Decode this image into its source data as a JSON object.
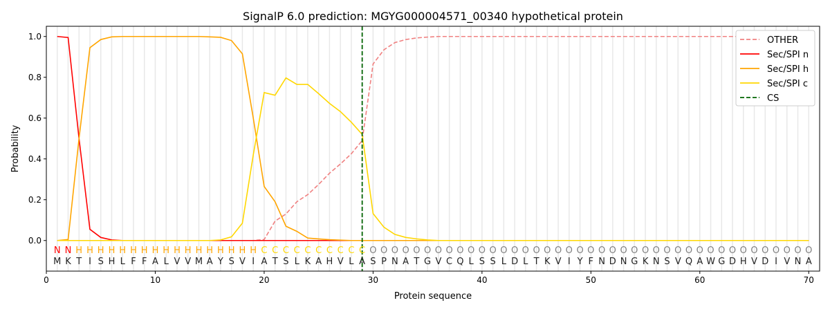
{
  "chart_data": {
    "type": "line",
    "title": "SignalP 6.0 prediction: MGYG000004571_00340 hypothetical protein",
    "xlabel": "Protein sequence",
    "ylabel": "Probability",
    "xlim": [
      0,
      71
    ],
    "ylim": [
      -0.15,
      1.05
    ],
    "xticks": [
      0,
      10,
      20,
      30,
      40,
      50,
      60,
      70
    ],
    "yticks": [
      0.0,
      0.2,
      0.4,
      0.6,
      0.8,
      1.0
    ],
    "legend_position": "top-right",
    "sequence": "MKTISHLFFALVVMAYSVIATSLKAHVLASPNATGVCQLSSLDLTKVIYFNDNGKNSVQAWGDHVDIVNA",
    "region_labels": "NNHHHHHHHHHHHHHHHHHCCCCCCCCCCOOOOOOOOOOOOOOOOOOOOOOOOOOOOOOOOOOOOOOOOO",
    "label_colors": {
      "N": "#ff0000",
      "H": "#ffa500",
      "C": "#ffd700",
      "O": "#808080"
    },
    "cs_position": 29,
    "series": [
      {
        "name": "OTHER",
        "color": "#f08080",
        "dash": true,
        "values": [
          0,
          0,
          0,
          0,
          0,
          0,
          0,
          0,
          0,
          0,
          0,
          0,
          0,
          0,
          0,
          0,
          0,
          0,
          0,
          0.005,
          0.095,
          0.13,
          0.19,
          0.225,
          0.275,
          0.33,
          0.375,
          0.425,
          0.49,
          0.865,
          0.935,
          0.97,
          0.985,
          0.993,
          0.997,
          1,
          1,
          1,
          1,
          1,
          1,
          1,
          1,
          1,
          1,
          1,
          1,
          1,
          1,
          1,
          1,
          1,
          1,
          1,
          1,
          1,
          1,
          1,
          1,
          1,
          1,
          1,
          1,
          1,
          1,
          1,
          1,
          1,
          1,
          1
        ]
      },
      {
        "name": "Sec/SPI n",
        "color": "#ff0000",
        "values": [
          1,
          0.995,
          0.5,
          0.055,
          0.015,
          0.003,
          0,
          0,
          0,
          0,
          0,
          0,
          0,
          0,
          0,
          0,
          0,
          0,
          0,
          0,
          0,
          0,
          0,
          0,
          0,
          0,
          0,
          0,
          0,
          0,
          0,
          0,
          0,
          0,
          0,
          0,
          0,
          0,
          0,
          0,
          0,
          0,
          0,
          0,
          0,
          0,
          0,
          0,
          0,
          0,
          0,
          0,
          0,
          0,
          0,
          0,
          0,
          0,
          0,
          0,
          0,
          0,
          0,
          0,
          0,
          0,
          0,
          0,
          0,
          0
        ]
      },
      {
        "name": "Sec/SPI h",
        "color": "#ffa500",
        "values": [
          0,
          0.005,
          0.5,
          0.945,
          0.985,
          0.998,
          1,
          1,
          1,
          1,
          1,
          1,
          1,
          1,
          0.998,
          0.996,
          0.98,
          0.915,
          0.6,
          0.265,
          0.19,
          0.07,
          0.045,
          0.012,
          0.008,
          0.004,
          0.002,
          0,
          0,
          0,
          0,
          0,
          0,
          0,
          0,
          0,
          0,
          0,
          0,
          0,
          0,
          0,
          0,
          0,
          0,
          0,
          0,
          0,
          0,
          0,
          0,
          0,
          0,
          0,
          0,
          0,
          0,
          0,
          0,
          0,
          0,
          0,
          0,
          0,
          0,
          0,
          0,
          0,
          0,
          0
        ]
      },
      {
        "name": "Sec/SPI c",
        "color": "#ffd700",
        "values": [
          0,
          0,
          0,
          0,
          0,
          0,
          0,
          0,
          0,
          0,
          0,
          0,
          0,
          0,
          0,
          0.003,
          0.018,
          0.085,
          0.42,
          0.725,
          0.712,
          0.797,
          0.765,
          0.765,
          0.72,
          0.672,
          0.632,
          0.58,
          0.52,
          0.132,
          0.065,
          0.03,
          0.015,
          0.008,
          0.003,
          0,
          0,
          0,
          0,
          0,
          0,
          0,
          0,
          0,
          0,
          0,
          0,
          0,
          0,
          0,
          0,
          0,
          0,
          0,
          0,
          0,
          0,
          0,
          0,
          0,
          0,
          0,
          0,
          0,
          0,
          0,
          0,
          0,
          0,
          0
        ]
      }
    ],
    "cs_legend": {
      "name": "CS",
      "color": "#006400"
    }
  }
}
